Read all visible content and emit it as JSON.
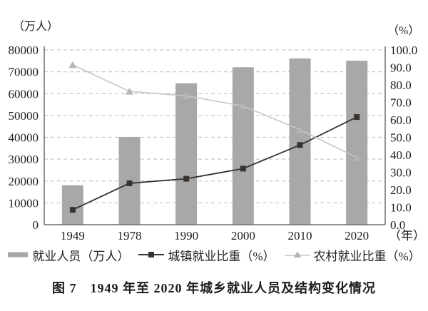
{
  "figure": {
    "caption": "图 7　1949 年至 2020 年城乡就业人员及结构变化情况"
  },
  "chart_data": {
    "type": "combo-bar-line",
    "title": "1949年至2020年城乡就业人员及结构变化情况",
    "categories": [
      "1949",
      "1978",
      "1990",
      "2000",
      "2010",
      "2020"
    ],
    "x_axis_unit": "（年）",
    "left_axis": {
      "label": "（万人）",
      "min": 0,
      "max": 80000,
      "step": 10000
    },
    "right_axis": {
      "label": "（%）",
      "min": 0,
      "max": 100,
      "step": 10,
      "tick_decimals": 1
    },
    "gridlines": {
      "style": "dashed",
      "color": "#c9c9c9",
      "aligned_to": "left-axis"
    },
    "legend_position": "bottom",
    "series": [
      {
        "name": "就业人员（万人）",
        "type": "bar",
        "axis": "left",
        "color": "#a8a8a8",
        "values": [
          18082,
          40152,
          64749,
          72085,
          76105,
          75064
        ]
      },
      {
        "name": "城镇就业比重（%）",
        "type": "line",
        "axis": "right",
        "marker": "square",
        "color": "#37322e",
        "values": [
          8.5,
          23.7,
          26.3,
          32.1,
          45.6,
          61.6
        ]
      },
      {
        "name": "农村就业比重（%）",
        "type": "line",
        "axis": "right",
        "marker": "triangle",
        "color": "#c6c6c6",
        "marker_color": "#b5b5b5",
        "values": [
          91.5,
          76.3,
          73.7,
          67.9,
          54.4,
          38.4
        ]
      }
    ]
  },
  "colors": {
    "background": "#ffffff",
    "axis": "#6e6e6e",
    "text": "#1d1d1d"
  }
}
